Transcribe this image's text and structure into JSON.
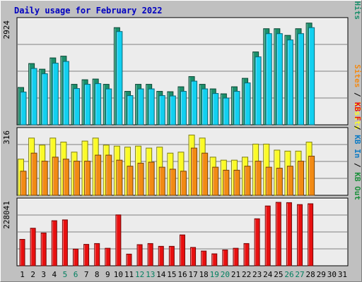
{
  "title": "Daily usage for February 2022",
  "colors": {
    "background": "#c0c0c0",
    "plot_background": "#ececec",
    "title_text": "#0000c0",
    "hits": "#1b8f6b",
    "files": "#12d0f0",
    "pages": "#0096c0",
    "visits": "#fbfb28",
    "sites": "#f28a14",
    "kbytes": "#e81010",
    "kb_in": "#0b7ac4",
    "kb_out": "#1b8f3b",
    "weekend_day": "#007f5f",
    "weekday_day": "#000000"
  },
  "chart_data": [
    {
      "type": "bar",
      "name": "hits-files-pages",
      "ytick_label": "2924",
      "ymax": 2924,
      "right_legend": [
        {
          "text": "Pages",
          "color_key": "pages"
        },
        {
          "text": " / ",
          "color_key": "weekday_day"
        },
        {
          "text": "Files",
          "color_key": "files"
        },
        {
          "text": " / ",
          "color_key": "weekday_day"
        },
        {
          "text": "Hits",
          "color_key": "hits"
        }
      ],
      "series": [
        {
          "key": "hits",
          "values": [
            1060,
            1740,
            1580,
            1900,
            1950,
            1150,
            1280,
            1300,
            1150,
            2760,
            950,
            1150,
            1150,
            950,
            940,
            1080,
            1370,
            1150,
            1020,
            880,
            1080,
            1320,
            2070,
            2730,
            2730,
            2540,
            2730,
            2890
          ]
        },
        {
          "key": "files",
          "values": [
            930,
            1600,
            1450,
            1750,
            1800,
            1030,
            1150,
            1170,
            1020,
            2650,
            830,
            1020,
            1020,
            830,
            820,
            950,
            1240,
            1020,
            890,
            760,
            950,
            1190,
            1930,
            2590,
            2590,
            2410,
            2590,
            2760
          ]
        }
      ]
    },
    {
      "type": "bar",
      "name": "visits-sites",
      "ytick_label": "316",
      "ymax": 316,
      "right_legend": [
        {
          "text": "Sites",
          "color_key": "sites"
        },
        {
          "text": " / ",
          "color_key": "weekday_day"
        },
        {
          "text": "Visits",
          "color_key": "visits"
        }
      ],
      "series": [
        {
          "key": "visits",
          "values": [
            180,
            285,
            250,
            285,
            265,
            215,
            270,
            285,
            250,
            245,
            240,
            245,
            235,
            240,
            210,
            215,
            300,
            285,
            190,
            175,
            175,
            190,
            255,
            255,
            225,
            220,
            220,
            265
          ]
        },
        {
          "key": "sites",
          "values": [
            120,
            210,
            170,
            190,
            180,
            170,
            170,
            200,
            200,
            175,
            145,
            160,
            165,
            140,
            130,
            120,
            235,
            210,
            140,
            125,
            125,
            145,
            170,
            140,
            135,
            145,
            170,
            195
          ]
        }
      ]
    },
    {
      "type": "bar",
      "name": "kbytes",
      "ytick_label": "228041",
      "ymax": 228041,
      "right_legend": [
        {
          "text": "KB F",
          "color_key": "kbytes"
        },
        {
          "text": " / ",
          "color_key": "weekday_day"
        },
        {
          "text": "KB In",
          "color_key": "kb_in"
        },
        {
          "text": " / ",
          "color_key": "weekday_day"
        },
        {
          "text": "KB Out",
          "color_key": "kb_out"
        }
      ],
      "series": [
        {
          "key": "kbytes",
          "values": [
            95000,
            135000,
            118000,
            162000,
            165000,
            60000,
            77000,
            80000,
            63000,
            183000,
            42000,
            76000,
            80000,
            70000,
            70000,
            111000,
            66000,
            53000,
            43000,
            57000,
            63000,
            80000,
            169000,
            215000,
            228041,
            227000,
            220000,
            223000
          ]
        }
      ]
    }
  ],
  "x_axis": {
    "labels": [
      "1",
      "2",
      "3",
      "4",
      "5",
      "6",
      "7",
      "8",
      "9",
      "10",
      "11",
      "12",
      "13",
      "14",
      "15",
      "16",
      "17",
      "18",
      "19",
      "20",
      "21",
      "22",
      "23",
      "24",
      "25",
      "26",
      "27",
      "28",
      "29",
      "30",
      "31"
    ],
    "weekend_days": [
      5,
      6,
      12,
      13,
      19,
      20,
      26,
      27
    ]
  }
}
